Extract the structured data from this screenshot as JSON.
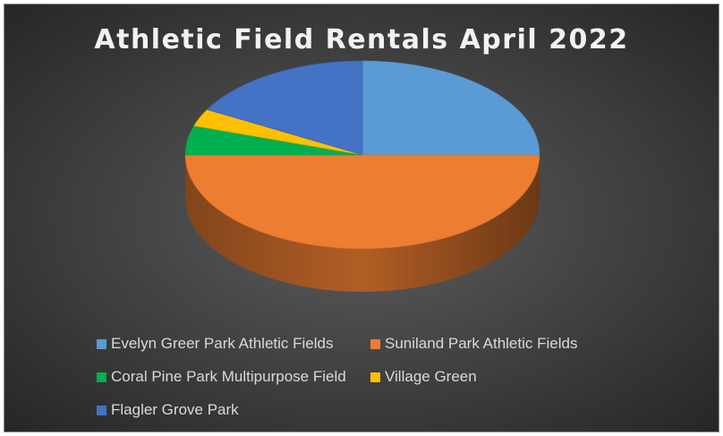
{
  "chart_data": {
    "type": "pie",
    "title": "Athletic Field Rentals April 2022",
    "style": "3d-pie",
    "legend_position": "bottom",
    "slices": [
      {
        "label": "Evelyn Greer Park Athletic Fields",
        "value": 25,
        "color": "#5b9bd5"
      },
      {
        "label": "Suniland Park Athletic Fields",
        "value": 50,
        "color": "#ed7d31"
      },
      {
        "label": "Coral Pine Park Multipurpose Field",
        "value": 5,
        "color": "#00b050"
      },
      {
        "label": "Village Green",
        "value": 3,
        "color": "#ffc000"
      },
      {
        "label": "Flagler Grove Park",
        "value": 17,
        "color": "#4472c4"
      }
    ]
  }
}
